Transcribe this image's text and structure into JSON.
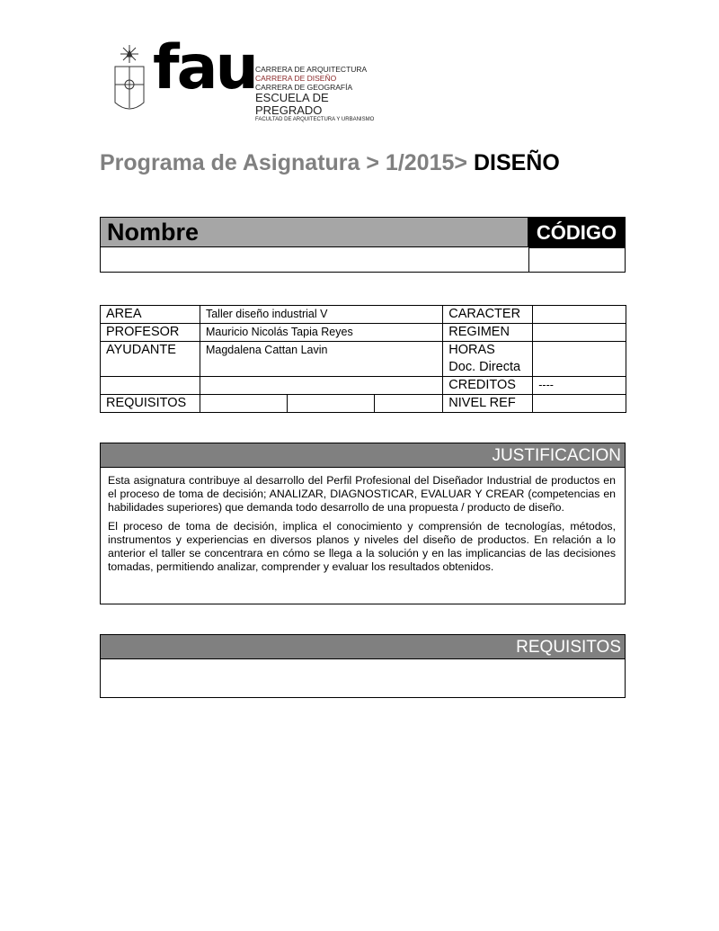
{
  "logo": {
    "mark": "fau",
    "lines": [
      "CARRERA DE ARQUITECTURA",
      "CARRERA DE DISEÑO",
      "CARRERA DE  GEOGRAFÍA",
      "ESCUELA DE PREGRADO",
      "FACULTAD DE ARQUITECTURA Y URBANISMO"
    ],
    "accent": "#8b2a2a"
  },
  "title": {
    "prefix": "Programa de Asignatura > 1/2015> ",
    "subject": "DISEÑO"
  },
  "header": {
    "nombre": "Nombre",
    "codigo": "CÓDIGO"
  },
  "info": {
    "area_label": "AREA",
    "area": "Taller diseño industrial V",
    "profesor_label": "PROFESOR",
    "profesor": "Mauricio Nicolás Tapia Reyes",
    "ayudante_label": "AYUDANTE",
    "ayudante": "Magdalena Cattan Lavin",
    "caracter_label": "CARACTER",
    "regimen_label": "REGIMEN",
    "horas_label": "HORAS",
    "horas_label2": "Doc. Directa",
    "creditos_label": "CREDITOS",
    "creditos": "----",
    "requisitos_label": "REQUISITOS",
    "nivel_label": "NIVEL REF"
  },
  "justificacion": {
    "title": "JUSTIFICACION",
    "paragraphs": [
      "Esta asignatura contribuye al desarrollo del Perfil Profesional del Diseñador Industrial de productos en el proceso de toma de decisión; ANALIZAR, DIAGNOSTICAR, EVALUAR Y CREAR (competencias en habilidades superiores) que demanda todo desarrollo de una propuesta / producto de diseño.",
      "El proceso de toma de decisión, implica el conocimiento y comprensión de tecnologías, métodos, instrumentos y experiencias en diversos planos y niveles del diseño de productos. En relación a lo anterior el taller se concentrara en cómo se llega a la solución y en las implicancias de las decisiones tomadas, permitiendo analizar, comprender y evaluar los resultados obtenidos."
    ]
  },
  "requisitos": {
    "title": "REQUISITOS"
  }
}
